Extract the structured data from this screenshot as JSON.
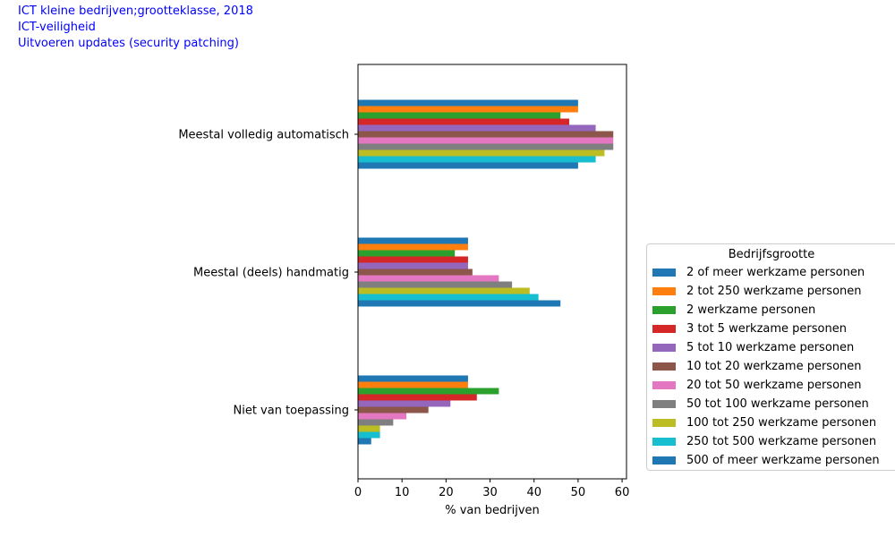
{
  "header": {
    "lines": [
      "ICT kleine bedrijven;grootteklasse, 2018",
      "ICT-veiligheid",
      "Uitvoeren updates (security patching)"
    ]
  },
  "chart_data": {
    "type": "bar",
    "orientation": "horizontal",
    "categories": [
      "Meestal volledig automatisch",
      "Meestal (deels) handmatig",
      "Niet van toepassing"
    ],
    "xlabel": "% van bedrijven",
    "ylabel": "",
    "xlim": [
      0,
      61
    ],
    "xticks": [
      0,
      10,
      20,
      30,
      40,
      50,
      60
    ],
    "legend_title": "Bedrijfsgrootte",
    "legend_position": "right",
    "grid": false,
    "series": [
      {
        "name": "2 of meer werkzame personen",
        "color": "#1f77b4",
        "values": [
          50,
          25,
          25
        ]
      },
      {
        "name": "2 tot 250 werkzame personen",
        "color": "#ff7f0e",
        "values": [
          50,
          25,
          25
        ]
      },
      {
        "name": "2 werkzame personen",
        "color": "#2ca02c",
        "values": [
          46,
          22,
          32
        ]
      },
      {
        "name": "3 tot 5 werkzame personen",
        "color": "#d62728",
        "values": [
          48,
          25,
          27
        ]
      },
      {
        "name": "5 tot 10 werkzame personen",
        "color": "#9467bd",
        "values": [
          54,
          25,
          21
        ]
      },
      {
        "name": "10 tot 20 werkzame personen",
        "color": "#8c564b",
        "values": [
          58,
          26,
          16
        ]
      },
      {
        "name": "20 tot 50 werkzame personen",
        "color": "#e377c2",
        "values": [
          58,
          32,
          11
        ]
      },
      {
        "name": "50 tot 100 werkzame personen",
        "color": "#7f7f7f",
        "values": [
          58,
          35,
          8
        ]
      },
      {
        "name": "100 tot 250 werkzame personen",
        "color": "#bcbd22",
        "values": [
          56,
          39,
          5
        ]
      },
      {
        "name": "250 tot 500 werkzame personen",
        "color": "#17becf",
        "values": [
          54,
          41,
          5
        ]
      },
      {
        "name": "500 of meer werkzame personen",
        "color": "#1f77b4",
        "values": [
          50,
          46,
          3
        ]
      }
    ]
  }
}
